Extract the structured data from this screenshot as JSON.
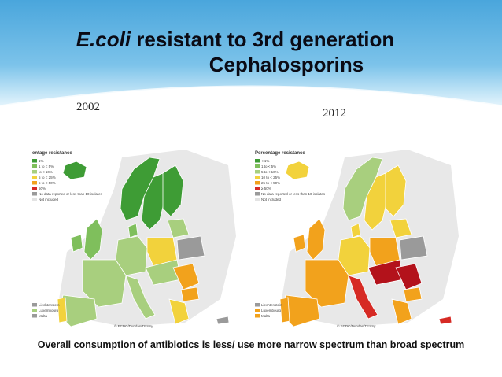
{
  "slide": {
    "title_italic": "E.coli",
    "title_rest_line1": " resistant to 3rd generation",
    "title_line2": "Cephalosporins",
    "year_left": "2002",
    "year_right": "2012",
    "footer": "Overall consumption of antibiotics is less/ use more narrow spectrum than broad spectrum"
  },
  "map_2002": {
    "legend_title": "entage resistance",
    "legend_items": [
      "1%",
      "1 to < 5%",
      "to < 10%",
      "5 to < 25%",
      "5 to < 50%",
      "50%",
      "No data reported or less than 10 isolates",
      "Not included"
    ],
    "small_states": [
      "Liechtenstein",
      "Luxembourg",
      "Malta"
    ],
    "credit": "© ECDC/Dundas/TESSy"
  },
  "map_2012": {
    "legend_title": "Percentage resistance",
    "legend_items": [
      "< 1%",
      "1 to < 5%",
      "5 to < 10%",
      "10 to < 25%",
      "25 to < 50%",
      "≥ 50%",
      "No data reported or less than 10 isolates",
      "Not included"
    ],
    "small_states": [
      "Liechtenstein",
      "Luxembourg",
      "Malta"
    ],
    "credit": "© ECDC/Dundas/TESSy"
  },
  "colors": {
    "lt1": "#3e9c35",
    "p1_5": "#7fbf5c",
    "p5_10": "#a8cf7e",
    "p10_25": "#f2d23c",
    "p25_50": "#f2a21c",
    "p50": "#d62a24",
    "over50": "#b3121b",
    "nodata": "#9a9a9a",
    "notincluded": "#e3e3e3"
  }
}
